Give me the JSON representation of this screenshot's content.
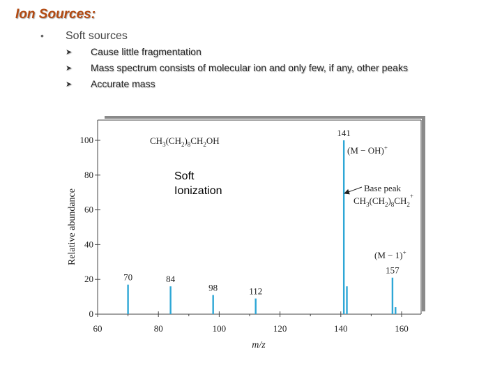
{
  "slide": {
    "title": "Ion Sources:",
    "bullet": "•",
    "main_point": "Soft sources",
    "sub_arrow": "➤",
    "sub_points": [
      "Cause little fragmentation",
      "Mass spectrum consists of molecular ion and only few, if any, other peaks",
      "Accurate mass"
    ]
  },
  "chart_data": {
    "type": "bar",
    "title": "",
    "xlabel": "m/z",
    "ylabel": "Relative abundance",
    "xlim": [
      60,
      164
    ],
    "ylim": [
      0,
      110
    ],
    "x_ticks": [
      60,
      80,
      100,
      120,
      140,
      160
    ],
    "y_ticks": [
      0,
      20,
      40,
      60,
      80,
      100
    ],
    "grid": false,
    "bar_color": "#2ea7d6",
    "peaks": [
      {
        "mz": 70,
        "abundance": 17,
        "label": "70"
      },
      {
        "mz": 84,
        "abundance": 16,
        "label": "84"
      },
      {
        "mz": 98,
        "abundance": 11,
        "label": "98"
      },
      {
        "mz": 112,
        "abundance": 9,
        "label": "112"
      },
      {
        "mz": 141,
        "abundance": 100,
        "label": "141"
      },
      {
        "mz": 142,
        "abundance": 16,
        "label": ""
      },
      {
        "mz": 157,
        "abundance": 21,
        "label": "157"
      },
      {
        "mz": 158,
        "abundance": 4,
        "label": ""
      }
    ],
    "formula": {
      "p1": "CH",
      "s1": "3",
      "p2": "(CH",
      "s2": "2",
      "p3": ")",
      "s3": "8",
      "p4": "CH",
      "s4": "2",
      "p5": "OH"
    },
    "annotations": {
      "m_minus_oh": "(M − OH)",
      "m_minus_oh_sup": "+",
      "base_peak": "Base peak",
      "base_formula": {
        "p1": "CH",
        "s1": "3",
        "p2": "(CH",
        "s2": "2",
        "p3": ")",
        "s3": "8",
        "p4": "CH",
        "s4": "2",
        "sup": "+"
      },
      "m_minus_1": "(M − 1)",
      "m_minus_1_sup": "+"
    }
  },
  "overlay": {
    "line1": "Soft",
    "line2": "Ionization"
  }
}
